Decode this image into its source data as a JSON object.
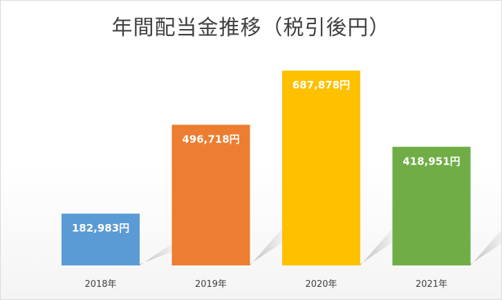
{
  "chart_data": {
    "type": "bar",
    "title": "年間配当金推移（税引後円）",
    "categories": [
      "2018年",
      "2019年",
      "2020年",
      "2021年"
    ],
    "values": [
      182983,
      496718,
      687878,
      418951
    ],
    "data_labels": [
      "182,983円",
      "496,718円",
      "687,878円",
      "418,951円"
    ],
    "colors": [
      "#5B9BD5",
      "#ED7D31",
      "#FFC000",
      "#70AD47"
    ],
    "ylim": [
      0,
      720000
    ],
    "grid": false,
    "legend": "none",
    "xlabel": "",
    "ylabel": ""
  }
}
